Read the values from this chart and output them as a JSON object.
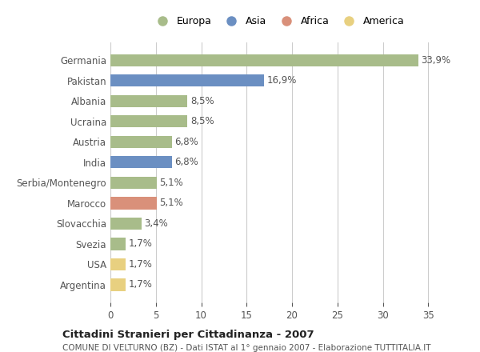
{
  "categories": [
    "Argentina",
    "USA",
    "Svezia",
    "Slovacchia",
    "Marocco",
    "Serbia/Montenegro",
    "India",
    "Austria",
    "Ucraina",
    "Albania",
    "Pakistan",
    "Germania"
  ],
  "values": [
    1.7,
    1.7,
    1.7,
    3.4,
    5.1,
    5.1,
    6.8,
    6.8,
    8.5,
    8.5,
    16.9,
    33.9
  ],
  "labels": [
    "1,7%",
    "1,7%",
    "1,7%",
    "3,4%",
    "5,1%",
    "5,1%",
    "6,8%",
    "6,8%",
    "8,5%",
    "8,5%",
    "16,9%",
    "33,9%"
  ],
  "continents": [
    "America",
    "America",
    "Europa",
    "Europa",
    "Africa",
    "Europa",
    "Asia",
    "Europa",
    "Europa",
    "Europa",
    "Asia",
    "Europa"
  ],
  "colors": {
    "Europa": "#a8bc8a",
    "Asia": "#6b8fc2",
    "Africa": "#d9907a",
    "America": "#e8d080"
  },
  "legend_order": [
    "Europa",
    "Asia",
    "Africa",
    "America"
  ],
  "title_bold": "Cittadini Stranieri per Cittadinanza - 2007",
  "subtitle": "COMUNE DI VELTURNO (BZ) - Dati ISTAT al 1° gennaio 2007 - Elaborazione TUTTITALIA.IT",
  "xlim": [
    0,
    37
  ],
  "xticks": [
    0,
    5,
    10,
    15,
    20,
    25,
    30,
    35
  ],
  "background_color": "#ffffff",
  "bar_height": 0.6,
  "grid_color": "#cccccc"
}
